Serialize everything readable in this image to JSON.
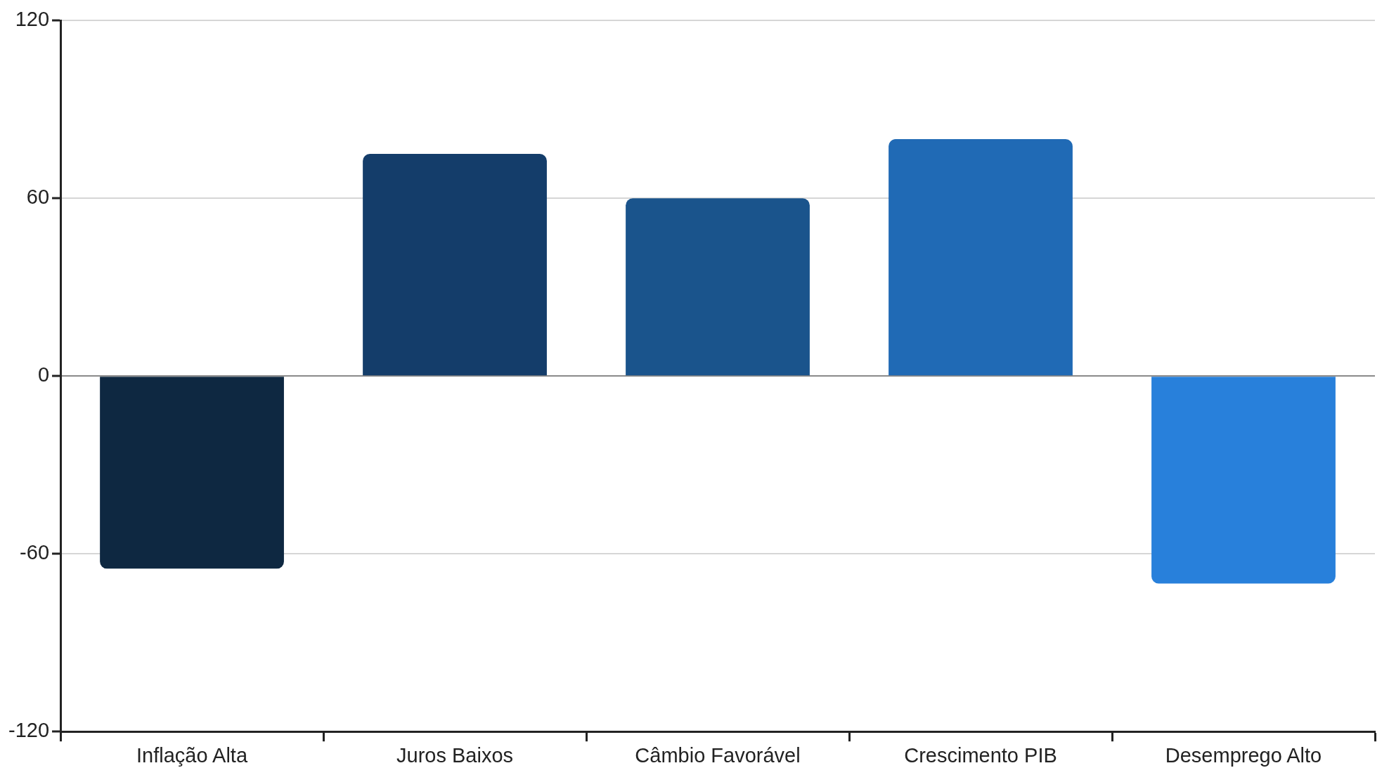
{
  "chart_data": {
    "type": "bar",
    "categories": [
      "Inflação Alta",
      "Juros Baixos",
      "Câmbio Favorável",
      "Crescimento PIB",
      "Desemprego Alto"
    ],
    "values": [
      -65,
      75,
      60,
      80,
      -70
    ],
    "colors": [
      "#0e2841",
      "#143d6a",
      "#1a548c",
      "#206ab5",
      "#2880db"
    ],
    "ylim": [
      -120,
      120
    ],
    "yticks": [
      -120,
      -60,
      0,
      60,
      120
    ],
    "grid": "y",
    "legend": false
  }
}
